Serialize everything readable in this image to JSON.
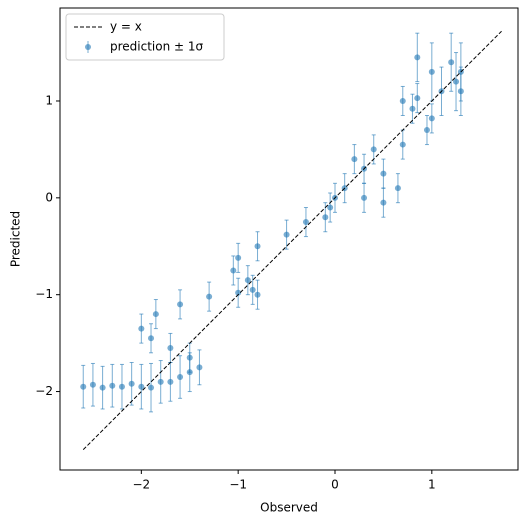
{
  "chart_data": {
    "type": "errorbar",
    "xlabel": "Observed",
    "ylabel": "Predicted",
    "xlim": [
      -2.84,
      1.89
    ],
    "ylim": [
      -2.81,
      1.96
    ],
    "xticks": [
      {
        "value": -2,
        "label": "−2"
      },
      {
        "value": -1,
        "label": "−1"
      },
      0,
      1
    ],
    "yticks": [
      {
        "value": -2,
        "label": "−2"
      },
      {
        "value": -1,
        "label": "−1"
      },
      0,
      1
    ],
    "legend": "upper left",
    "reference_line": {
      "name": "y = x",
      "color": "#000000",
      "x": [
        -2.6,
        1.72
      ],
      "y": [
        -2.6,
        1.72
      ]
    },
    "series": [
      {
        "name": "prediction ± 1σ",
        "color": "#1f77b4",
        "x": [
          -2.6,
          -2.5,
          -2.4,
          -2.3,
          -2.2,
          -2.1,
          -2.0,
          -1.9,
          -1.8,
          -1.7,
          -1.6,
          -1.5,
          -1.4,
          -1.5,
          -1.7,
          -1.9,
          -2.0,
          -1.85,
          -1.6,
          -1.3,
          -1.0,
          -0.85,
          -0.8,
          -0.9,
          -1.05,
          -1.0,
          -0.8,
          -0.5,
          -0.3,
          -0.1,
          -0.05,
          0.0,
          0.1,
          0.3,
          0.5,
          0.65,
          0.5,
          0.3,
          0.2,
          0.4,
          0.7,
          0.95,
          1.0,
          0.8,
          0.7,
          0.85,
          1.1,
          1.25,
          1.3,
          1.2,
          0.85,
          1.0,
          1.3
        ],
        "y": [
          -1.95,
          -1.93,
          -1.96,
          -1.94,
          -1.95,
          -1.92,
          -1.95,
          -1.96,
          -1.9,
          -1.9,
          -1.85,
          -1.8,
          -1.75,
          -1.65,
          -1.55,
          -1.45,
          -1.35,
          -1.2,
          -1.1,
          -1.02,
          -0.98,
          -0.95,
          -1.0,
          -0.85,
          -0.75,
          -0.62,
          -0.5,
          -0.38,
          -0.25,
          -0.2,
          -0.1,
          0.0,
          0.1,
          0.0,
          -0.05,
          0.1,
          0.25,
          0.3,
          0.4,
          0.5,
          0.55,
          0.7,
          0.82,
          0.92,
          1.0,
          1.03,
          1.1,
          1.2,
          1.3,
          1.4,
          1.45,
          1.3,
          1.1
        ],
        "errors": [
          0.22,
          0.22,
          0.22,
          0.22,
          0.23,
          0.22,
          0.23,
          0.25,
          0.22,
          0.2,
          0.22,
          0.2,
          0.18,
          0.15,
          0.15,
          0.15,
          0.15,
          0.15,
          0.15,
          0.15,
          0.15,
          0.15,
          0.15,
          0.15,
          0.15,
          0.15,
          0.15,
          0.15,
          0.15,
          0.15,
          0.15,
          0.15,
          0.15,
          0.15,
          0.15,
          0.15,
          0.15,
          0.15,
          0.15,
          0.15,
          0.15,
          0.15,
          0.15,
          0.15,
          0.15,
          0.15,
          0.25,
          0.3,
          0.3,
          0.3,
          0.25,
          0.3,
          0.25
        ]
      }
    ]
  }
}
